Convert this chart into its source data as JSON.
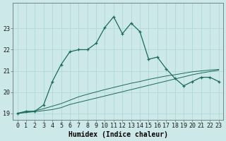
{
  "xlabel": "Humidex (Indice chaleur)",
  "bg_color": "#cde8e8",
  "line_color": "#1a6b5e",
  "grid_color": "#b0d8d8",
  "xlim": [
    -0.5,
    23.5
  ],
  "ylim": [
    18.7,
    24.2
  ],
  "yticks": [
    19,
    20,
    21,
    22,
    23
  ],
  "xticks": [
    0,
    1,
    2,
    3,
    4,
    5,
    6,
    7,
    8,
    9,
    10,
    11,
    12,
    13,
    14,
    15,
    16,
    17,
    18,
    19,
    20,
    21,
    22,
    23
  ],
  "curve1_x": [
    0,
    1,
    2,
    3,
    4,
    5,
    6,
    7,
    8,
    9,
    10,
    11,
    12,
    13,
    14,
    15,
    16,
    17,
    18,
    19,
    20,
    21,
    22,
    23
  ],
  "curve1_y": [
    19.0,
    19.1,
    19.1,
    19.4,
    20.5,
    21.3,
    21.9,
    22.0,
    22.0,
    22.3,
    23.05,
    23.55,
    22.75,
    23.25,
    22.85,
    21.55,
    21.65,
    21.1,
    20.65,
    20.3,
    20.5,
    20.7,
    20.7,
    20.5
  ],
  "curve2_x": [
    0,
    1,
    2,
    3,
    4,
    5,
    6,
    7,
    8,
    9,
    10,
    11,
    12,
    13,
    14,
    15,
    16,
    17,
    18,
    19,
    20,
    21,
    22,
    23
  ],
  "curve2_y": [
    19.0,
    19.04,
    19.08,
    19.13,
    19.18,
    19.27,
    19.42,
    19.52,
    19.62,
    19.72,
    19.82,
    19.92,
    20.02,
    20.12,
    20.22,
    20.32,
    20.42,
    20.52,
    20.62,
    20.72,
    20.82,
    20.9,
    20.97,
    21.03
  ],
  "curve3_x": [
    0,
    1,
    2,
    3,
    4,
    5,
    6,
    7,
    8,
    9,
    10,
    11,
    12,
    13,
    14,
    15,
    16,
    17,
    18,
    19,
    20,
    21,
    22,
    23
  ],
  "curve3_y": [
    19.0,
    19.06,
    19.12,
    19.22,
    19.34,
    19.46,
    19.62,
    19.78,
    19.9,
    20.01,
    20.12,
    20.22,
    20.32,
    20.42,
    20.5,
    20.6,
    20.68,
    20.76,
    20.82,
    20.89,
    20.96,
    21.0,
    21.04,
    21.07
  ],
  "title_fontsize": 7,
  "axis_fontsize": 7,
  "tick_fontsize": 6
}
